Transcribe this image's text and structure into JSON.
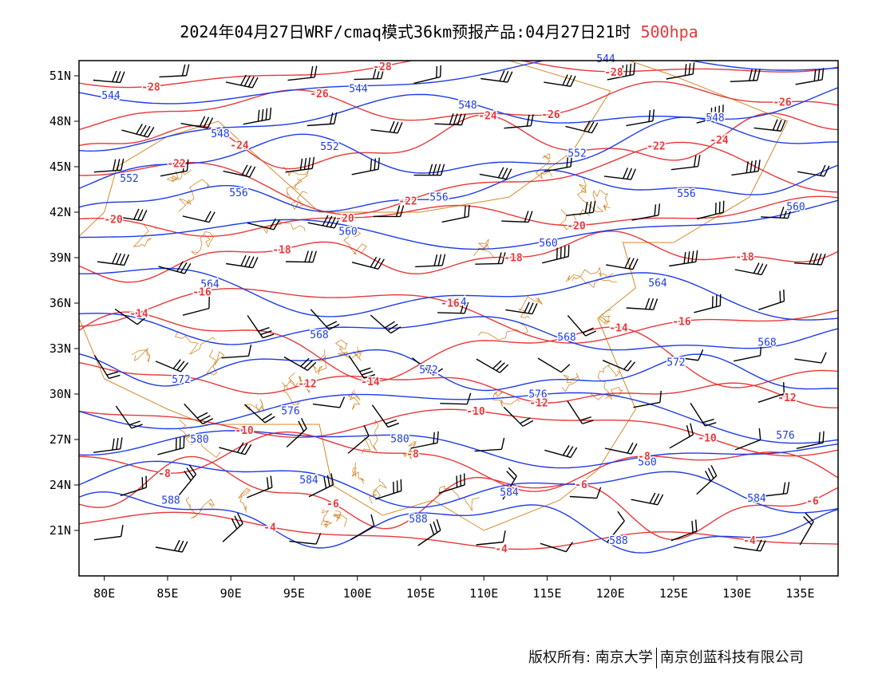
{
  "title": {
    "main": "2024年04月27日WRF/cmaq模式36km预报产品:04月27日21时",
    "level": "500hpa"
  },
  "axes": {
    "lat_labels": [
      "51N",
      "48N",
      "45N",
      "42N",
      "39N",
      "36N",
      "33N",
      "30N",
      "27N",
      "24N",
      "21N"
    ],
    "lat_values": [
      51,
      48,
      45,
      42,
      39,
      36,
      33,
      30,
      27,
      24,
      21
    ],
    "lon_labels": [
      "80E",
      "85E",
      "90E",
      "95E",
      "100E",
      "105E",
      "110E",
      "115E",
      "120E",
      "125E",
      "130E",
      "135E"
    ],
    "lon_values": [
      80,
      85,
      90,
      95,
      100,
      105,
      110,
      115,
      120,
      125,
      130,
      135
    ],
    "lon_range": [
      78,
      138
    ],
    "lat_range": [
      18,
      52
    ]
  },
  "colors": {
    "height_contour": "#1e3ce8",
    "temperature_contour": "#e8383a",
    "borders": "#d4892a",
    "wind_barbs": "#000000",
    "level_text": "#e8383a"
  },
  "height_contours": [
    {
      "value": "544"
    },
    {
      "value": "548"
    },
    {
      "value": "552"
    },
    {
      "value": "556"
    },
    {
      "value": "560"
    },
    {
      "value": "564"
    },
    {
      "value": "568"
    },
    {
      "value": "572"
    },
    {
      "value": "576"
    },
    {
      "value": "580"
    },
    {
      "value": "584"
    },
    {
      "value": "588"
    }
  ],
  "temperature_contours": [
    {
      "value": "-28"
    },
    {
      "value": "-26"
    },
    {
      "value": "-24"
    },
    {
      "value": "-22"
    },
    {
      "value": "-20"
    },
    {
      "value": "-18"
    },
    {
      "value": "-16"
    },
    {
      "value": "-14"
    },
    {
      "value": "-12"
    },
    {
      "value": "-10"
    },
    {
      "value": "-8"
    },
    {
      "value": "-6"
    },
    {
      "value": "-4"
    }
  ],
  "footer": {
    "left": "版权所有: 南京大学",
    "right": "南京创蓝科技有限公司"
  }
}
